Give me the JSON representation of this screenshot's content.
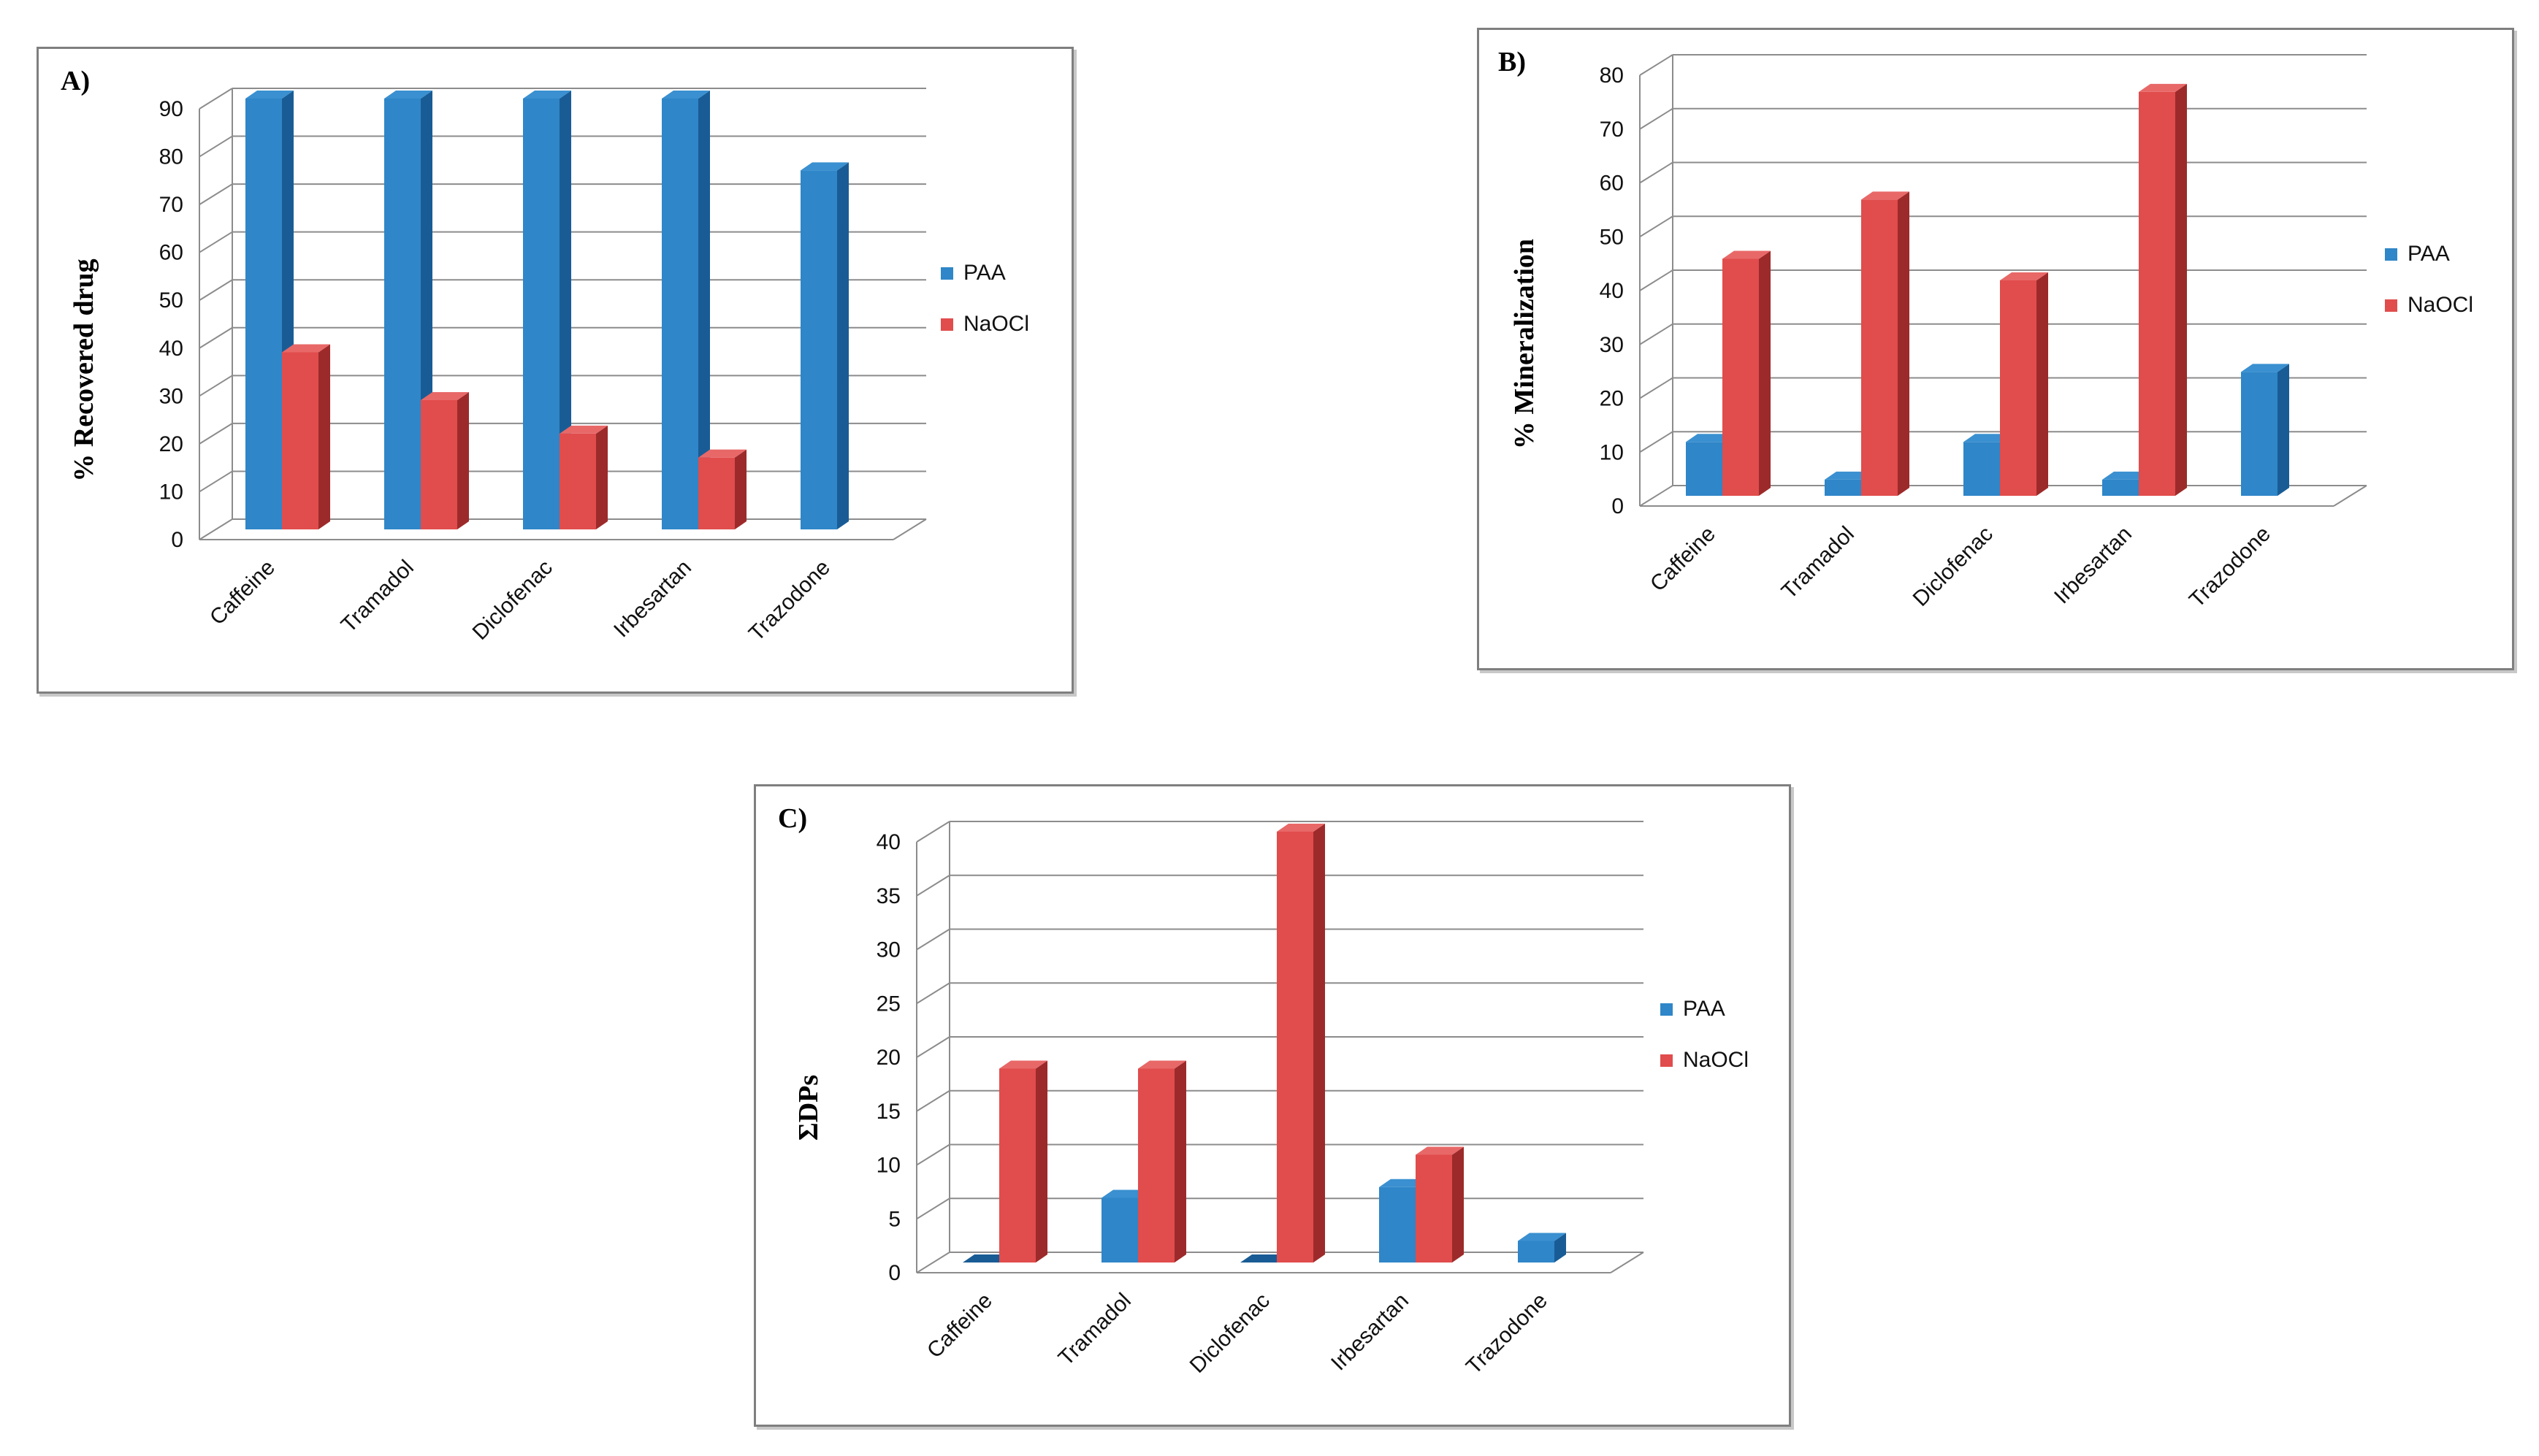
{
  "colors": {
    "PAA": {
      "front": "#2f86c8",
      "side": "#195c95",
      "top": "#3a90d0"
    },
    "NaOCl": {
      "front": "#e14c4c",
      "side": "#9d2a2a",
      "top": "#e86868"
    },
    "grid": "#8c8c8c"
  },
  "legend": {
    "paa": "PAA",
    "naocl": "NaOCl"
  },
  "chart_data": [
    {
      "panel": "A)",
      "type": "bar",
      "ylabel": "% Recovered drug",
      "ylim": [
        0,
        90
      ],
      "yticks": [
        0,
        10,
        20,
        30,
        40,
        50,
        60,
        70,
        80,
        90
      ],
      "categories": [
        "Caffeine",
        "Tramadol",
        "Diclofenac",
        "Irbesartan",
        "Trazodone"
      ],
      "series": [
        {
          "name": "PAA",
          "values": [
            90,
            90,
            90,
            90,
            75
          ]
        },
        {
          "name": "NaOCl",
          "values": [
            37,
            27,
            20,
            15,
            0
          ]
        }
      ],
      "grid": true,
      "legend_position": "right"
    },
    {
      "panel": "B)",
      "type": "bar",
      "ylabel": "% Mineralization",
      "ylim": [
        0,
        80
      ],
      "yticks": [
        0,
        10,
        20,
        30,
        40,
        50,
        60,
        70,
        80
      ],
      "categories": [
        "Caffeine",
        "Tramadol",
        "Diclofenac",
        "Irbesartan",
        "Trazodone"
      ],
      "series": [
        {
          "name": "PAA",
          "values": [
            10,
            3,
            10,
            3,
            23
          ]
        },
        {
          "name": "NaOCl",
          "values": [
            44,
            55,
            40,
            75,
            0
          ]
        }
      ],
      "grid": true,
      "legend_position": "right"
    },
    {
      "panel": "C)",
      "type": "bar",
      "ylabel": "ΣDPs",
      "ylim": [
        0,
        40
      ],
      "yticks": [
        0,
        5,
        10,
        15,
        20,
        25,
        30,
        35,
        40
      ],
      "categories": [
        "Caffeine",
        "Tramadol",
        "Diclofenac",
        "Irbesartan",
        "Trazodone"
      ],
      "series": [
        {
          "name": "PAA",
          "values": [
            0,
            6,
            0,
            7,
            2
          ]
        },
        {
          "name": "NaOCl",
          "values": [
            18,
            18,
            40,
            10,
            0
          ]
        }
      ],
      "grid": true,
      "legend_position": "right"
    }
  ]
}
